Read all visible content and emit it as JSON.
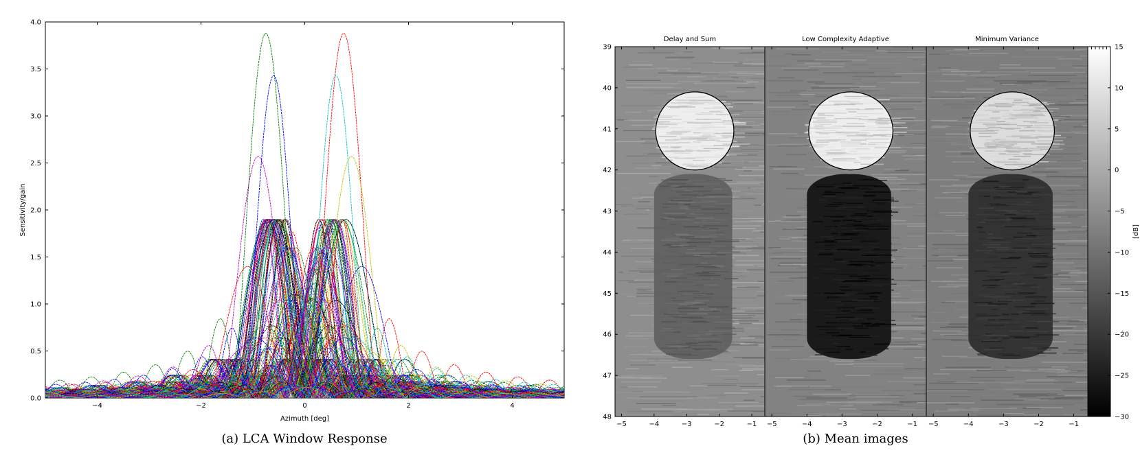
{
  "captions": [
    "(a) LCA Window Response",
    "(b) Mean images"
  ],
  "chart_data": [
    {
      "type": "line",
      "caption": "(a) LCA Window Response",
      "xlabel": "Azimuth [deg]",
      "ylabel": "Sensitivity/gain",
      "xlim": [
        -5,
        5
      ],
      "ylim": [
        0,
        4
      ],
      "xticks": [
        -4,
        -2,
        0,
        2,
        4
      ],
      "xtick_labels": [
        "−4",
        "−2",
        "0",
        "2",
        "4"
      ],
      "yticks": [
        0,
        0.5,
        1,
        1.5,
        2,
        2.5,
        3,
        3.5,
        4
      ],
      "ytick_labels": [
        "0.0",
        "0.5",
        "1.0",
        "1.5",
        "2.0",
        "2.5",
        "3.0",
        "3.5",
        "4.0"
      ],
      "grid": false,
      "line_colors": [
        "#008000",
        "#ff0000",
        "#0000ff",
        "#00bfbf",
        "#bf00bf",
        "#bfbf00",
        "#000000"
      ],
      "description_of_series": "Many overlapping window responses (sinc-like main lobes steered across azimuth, all passing through gain 1.0 at 0 deg).",
      "peaks": [
        {
          "x": -0.75,
          "y": 3.88
        },
        {
          "x": 0.75,
          "y": 3.88
        },
        {
          "x": -0.6,
          "y": 3.43
        },
        {
          "x": 0.6,
          "y": 3.43
        },
        {
          "x": -0.9,
          "y": 2.57
        },
        {
          "x": 0.9,
          "y": 2.57
        },
        {
          "x": -0.5,
          "y": 1.9
        },
        {
          "x": 0.5,
          "y": 1.9
        },
        {
          "x": -1.1,
          "y": 1.4
        },
        {
          "x": 1.1,
          "y": 1.4
        }
      ],
      "sidelobe_envelope": [
        {
          "x": -1.7,
          "y": 1.0
        },
        {
          "x": 1.7,
          "y": 1.0
        },
        {
          "x": -2.4,
          "y": 0.65
        },
        {
          "x": 2.4,
          "y": 0.65
        },
        {
          "x": -3.1,
          "y": 0.48
        },
        {
          "x": 3.1,
          "y": 0.48
        },
        {
          "x": -3.8,
          "y": 0.4
        },
        {
          "x": 3.8,
          "y": 0.4
        },
        {
          "x": -4.6,
          "y": 0.33
        },
        {
          "x": 4.6,
          "y": 0.33
        }
      ]
    },
    {
      "type": "heatmap",
      "caption": "(b) Mean images",
      "panels": [
        "Delay and Sum",
        "Low Complexity Adaptive",
        "Minimum Variance"
      ],
      "xlim": [
        -5.2,
        -0.6
      ],
      "xticks": [
        -5,
        -4,
        -3,
        -2,
        -1
      ],
      "xtick_labels": [
        "−5",
        "−4",
        "−3",
        "−2",
        "−1"
      ],
      "ylim": [
        39,
        48
      ],
      "yticks": [
        39,
        40,
        41,
        42,
        43,
        44,
        45,
        46,
        47,
        48
      ],
      "ytick_labels": [
        "39",
        "40",
        "41",
        "42",
        "43",
        "44",
        "45",
        "46",
        "47",
        "48"
      ],
      "colorbar": {
        "label": "[dB]",
        "range": [
          -30,
          15
        ],
        "ticks": [
          15,
          10,
          5,
          0,
          -5,
          -10,
          -15,
          -20,
          -25,
          -30
        ],
        "tick_labels": [
          "15",
          "10",
          "5",
          "0",
          "−5",
          "−10",
          "−15",
          "−20",
          "−25",
          "−30"
        ],
        "colormap": "gray"
      },
      "bright_circle": {
        "center_x": -2.75,
        "center_y": 41.05,
        "radius_x": 1.2,
        "radius_y": 0.95
      },
      "dark_region": {
        "x_min": -4.0,
        "x_max": -1.6,
        "y_min": 42.1,
        "y_max": 46.6
      },
      "panel_contrast_db": [
        {
          "bright": 12,
          "dark": -13,
          "background": -5
        },
        {
          "bright": 12,
          "dark": -27,
          "background": -7
        },
        {
          "bright": 9,
          "dark": -22,
          "background": -8
        }
      ]
    }
  ]
}
